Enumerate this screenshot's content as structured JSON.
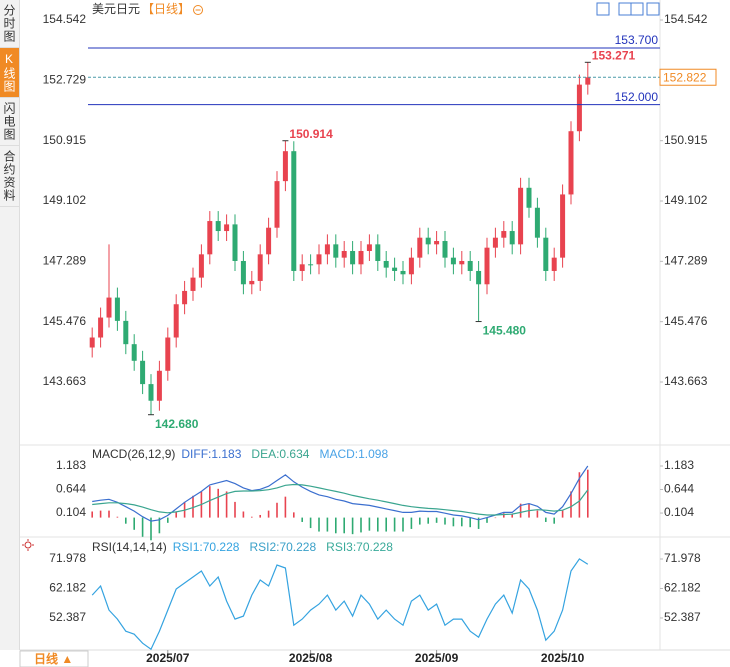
{
  "header": {
    "symbol": "美元日元",
    "period": "【日线】"
  },
  "sidebar": {
    "tabs": [
      {
        "text": "分时图",
        "active": false
      },
      {
        "text": "K线图",
        "active": true
      },
      {
        "text": "闪电图",
        "active": false
      },
      {
        "text": "合约资料",
        "active": false
      }
    ]
  },
  "footer": {
    "period": "日线 ▲"
  },
  "chart_data": [
    {
      "type": "candlestick",
      "categories": [
        null,
        null,
        null,
        null,
        null,
        null,
        null,
        null,
        null,
        "2025/07",
        null,
        null,
        null,
        null,
        null,
        null,
        null,
        null,
        null,
        null,
        null,
        null,
        null,
        null,
        null,
        null,
        "2025/08",
        null,
        null,
        null,
        null,
        null,
        null,
        null,
        null,
        null,
        null,
        null,
        null,
        null,
        null,
        "2025/09",
        null,
        null,
        null,
        null,
        null,
        null,
        null,
        null,
        null,
        null,
        null,
        null,
        null,
        null,
        "2025/10",
        null,
        null,
        null
      ],
      "open": [
        144.7,
        145.0,
        145.6,
        146.2,
        145.5,
        144.8,
        144.3,
        143.6,
        143.1,
        144.0,
        145.0,
        146.0,
        146.4,
        146.8,
        147.5,
        148.5,
        148.2,
        148.4,
        147.3,
        146.6,
        146.7,
        147.5,
        148.3,
        149.7,
        150.6,
        147.0,
        147.2,
        147.2,
        147.5,
        147.8,
        147.4,
        147.6,
        147.2,
        147.6,
        147.8,
        147.3,
        147.1,
        147.0,
        146.9,
        147.4,
        148.0,
        147.8,
        147.9,
        147.4,
        147.2,
        147.3,
        147.0,
        146.6,
        147.7,
        148.0,
        148.2,
        147.8,
        149.5,
        148.9,
        148.0,
        147.0,
        147.4,
        149.3,
        151.2,
        152.6
      ],
      "high": [
        145.3,
        145.9,
        147.8,
        146.5,
        145.8,
        145.1,
        144.6,
        143.9,
        144.3,
        145.3,
        146.3,
        146.7,
        147.1,
        147.8,
        148.8,
        148.8,
        148.7,
        148.7,
        147.6,
        147.0,
        147.8,
        148.6,
        150.0,
        150.914,
        150.9,
        147.5,
        147.5,
        147.8,
        148.1,
        148.1,
        147.9,
        147.9,
        147.9,
        148.1,
        148.1,
        147.6,
        147.4,
        147.3,
        147.7,
        148.3,
        148.3,
        148.2,
        148.2,
        147.7,
        147.6,
        147.6,
        147.3,
        148.0,
        148.3,
        148.5,
        148.5,
        149.8,
        149.8,
        149.2,
        148.3,
        147.7,
        149.6,
        151.5,
        152.9,
        153.271
      ],
      "low": [
        144.4,
        144.7,
        145.3,
        145.2,
        144.5,
        144.0,
        143.3,
        142.68,
        142.8,
        143.7,
        144.7,
        145.7,
        146.1,
        146.5,
        147.2,
        147.9,
        147.9,
        147.0,
        146.3,
        146.3,
        146.4,
        147.2,
        148.0,
        149.4,
        146.7,
        146.7,
        146.9,
        146.9,
        147.2,
        147.1,
        147.1,
        146.9,
        146.9,
        147.3,
        147.0,
        146.8,
        146.7,
        146.6,
        146.6,
        147.1,
        147.5,
        147.5,
        147.1,
        146.9,
        146.9,
        146.7,
        145.48,
        146.3,
        147.4,
        147.7,
        147.5,
        147.5,
        148.6,
        147.7,
        146.7,
        146.7,
        147.1,
        149.0,
        150.9,
        152.3
      ],
      "close": [
        145.0,
        145.6,
        146.2,
        145.5,
        144.8,
        144.3,
        143.6,
        143.1,
        144.0,
        145.0,
        146.0,
        146.4,
        146.8,
        147.5,
        148.5,
        148.2,
        148.4,
        147.3,
        146.6,
        146.7,
        147.5,
        148.3,
        149.7,
        150.6,
        147.0,
        147.2,
        147.2,
        147.5,
        147.8,
        147.4,
        147.6,
        147.2,
        147.6,
        147.8,
        147.3,
        147.1,
        147.0,
        146.9,
        147.4,
        148.0,
        147.8,
        147.9,
        147.4,
        147.2,
        147.3,
        147.0,
        146.6,
        147.7,
        148.0,
        148.2,
        147.8,
        149.5,
        148.9,
        148.0,
        147.0,
        147.4,
        149.3,
        151.2,
        152.6,
        152.82
      ],
      "up_color": "#e8434f",
      "down_color": "#2eaa72",
      "ylim": [
        141.92,
        154.903
      ],
      "yticks": [
        154.542,
        152.729,
        150.915,
        149.102,
        147.289,
        145.476,
        143.663
      ],
      "grid": false,
      "price_lines": [
        {
          "value": 153.7,
          "label": "153.700"
        },
        {
          "value": 152.0,
          "label": "152.000"
        }
      ],
      "price_line_color": "#2233bb",
      "current_price": 152.822,
      "current_color": "#f08a24",
      "current_line_color": "#4a9aa8",
      "extremes": [
        {
          "value": 153.271,
          "label": "153.271",
          "field": "high"
        },
        {
          "value": 150.914,
          "label": "150.914",
          "field": "high"
        },
        {
          "value": 142.68,
          "label": "142.680",
          "field": "low"
        },
        {
          "value": 145.48,
          "label": "145.480",
          "field": "low"
        }
      ]
    },
    {
      "type": "macd",
      "title": "MACD(26,12,9)",
      "series": [
        {
          "name": "DIFF:",
          "color": "#3b6fcf",
          "values": [
            0.37,
            0.4,
            0.42,
            0.35,
            0.25,
            0.15,
            0.02,
            -0.08,
            -0.05,
            0.05,
            0.2,
            0.35,
            0.48,
            0.6,
            0.75,
            0.8,
            0.85,
            0.78,
            0.68,
            0.62,
            0.65,
            0.72,
            0.85,
            0.98,
            0.82,
            0.7,
            0.6,
            0.52,
            0.48,
            0.42,
            0.38,
            0.32,
            0.3,
            0.28,
            0.24,
            0.2,
            0.16,
            0.12,
            0.12,
            0.15,
            0.14,
            0.14,
            0.1,
            0.06,
            0.04,
            0.0,
            -0.05,
            0.0,
            0.06,
            0.12,
            0.12,
            0.28,
            0.32,
            0.26,
            0.12,
            0.08,
            0.25,
            0.55,
            0.9,
            1.183
          ]
        },
        {
          "name": "DEA:",
          "color": "#3aa58f",
          "values": [
            0.3,
            0.32,
            0.34,
            0.34,
            0.32,
            0.29,
            0.24,
            0.18,
            0.13,
            0.11,
            0.13,
            0.17,
            0.23,
            0.3,
            0.39,
            0.47,
            0.55,
            0.6,
            0.61,
            0.61,
            0.62,
            0.64,
            0.68,
            0.74,
            0.76,
            0.75,
            0.72,
            0.68,
            0.64,
            0.6,
            0.56,
            0.51,
            0.47,
            0.43,
            0.4,
            0.36,
            0.32,
            0.28,
            0.25,
            0.23,
            0.21,
            0.2,
            0.18,
            0.16,
            0.14,
            0.11,
            0.08,
            0.06,
            0.06,
            0.07,
            0.08,
            0.12,
            0.16,
            0.18,
            0.17,
            0.15,
            0.17,
            0.25,
            0.38,
            0.634
          ]
        }
      ],
      "histogram": {
        "name": "MACD:",
        "color": "#4aa3e6",
        "up_color": "#e8434f",
        "down_color": "#2eaa72",
        "values": [
          0.14,
          0.16,
          0.16,
          0.02,
          -0.14,
          -0.28,
          -0.44,
          -0.52,
          -0.36,
          -0.12,
          0.14,
          0.36,
          0.5,
          0.6,
          0.72,
          0.66,
          0.6,
          0.36,
          0.14,
          0.02,
          0.06,
          0.16,
          0.34,
          0.48,
          0.12,
          -0.1,
          -0.24,
          -0.32,
          -0.32,
          -0.36,
          -0.36,
          -0.38,
          -0.34,
          -0.3,
          -0.32,
          -0.32,
          -0.32,
          -0.32,
          -0.26,
          -0.16,
          -0.14,
          -0.12,
          -0.16,
          -0.2,
          -0.2,
          -0.22,
          -0.26,
          -0.12,
          0.0,
          0.1,
          0.08,
          0.32,
          0.32,
          0.16,
          -0.1,
          -0.14,
          0.16,
          0.6,
          1.04,
          1.098
        ]
      },
      "ylim": [
        -0.445,
        1.596
      ],
      "yticks": [
        1.183,
        0.644,
        0.104
      ]
    },
    {
      "type": "line",
      "title": "RSI(14,14,14)",
      "series": [
        {
          "name": "RSI1:",
          "color": "#35a3e0",
          "values": [
            60,
            63,
            55,
            52,
            48,
            47,
            44,
            42,
            48,
            55,
            62,
            64,
            66,
            68,
            63,
            66,
            58,
            52,
            53,
            60,
            65,
            63,
            70,
            69,
            50,
            52,
            55,
            57,
            60,
            55,
            58,
            53,
            60,
            57,
            52,
            55,
            52,
            50,
            58,
            60,
            55,
            57,
            50,
            52,
            52,
            48,
            46,
            52,
            57,
            60,
            54,
            65,
            62,
            55,
            45,
            48,
            55,
            68,
            72,
            70.228
          ]
        }
      ],
      "readouts": [
        {
          "name": "RSI1:",
          "value": 70.228,
          "color": "#35a3e0"
        },
        {
          "name": "RSI2:",
          "value": 70.228,
          "color": "#3aa0c8"
        },
        {
          "name": "RSI3:",
          "value": 70.228,
          "color": "#3aaa9a"
        }
      ],
      "ylim": [
        41.08,
        78.29
      ],
      "yticks": [
        71.978,
        62.182,
        52.387
      ]
    }
  ]
}
